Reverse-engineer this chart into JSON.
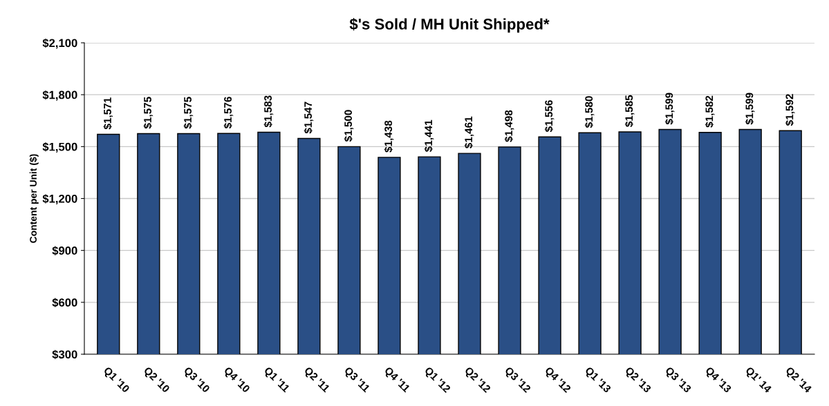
{
  "chart_data": {
    "type": "bar",
    "title": "$'s Sold / MH Unit Shipped*",
    "ylabel": "Content per Unit ($)",
    "categories": [
      "Q1 '10",
      "Q2 '10",
      "Q3 '10",
      "Q4 '10",
      "Q1 '11",
      "Q2 '11",
      "Q3 '11",
      "Q4 '11",
      "Q1 '12",
      "Q2 '12",
      "Q3 '12",
      "Q4 '12",
      "Q1 '13",
      "Q2 '13",
      "Q3 '13",
      "Q4 '13",
      "Q1' 14",
      "Q2 '14"
    ],
    "values": [
      1571,
      1575,
      1575,
      1576,
      1583,
      1547,
      1500,
      1438,
      1441,
      1461,
      1498,
      1556,
      1580,
      1585,
      1599,
      1582,
      1599,
      1592
    ],
    "value_labels": [
      "$1,571",
      "$1,575",
      "$1,575",
      "$1,576",
      "$1,583",
      "$1,547",
      "$1,500",
      "$1,438",
      "$1,441",
      "$1,461",
      "$1,498",
      "$1,556",
      "$1,580",
      "$1,585",
      "$1,599",
      "$1,582",
      "$1,599",
      "$1,592"
    ],
    "color": "#2a4f86",
    "ylim": [
      300,
      2100
    ],
    "yticks": [
      {
        "value": 300,
        "label": "$300"
      },
      {
        "value": 600,
        "label": "$600"
      },
      {
        "value": 900,
        "label": "$900"
      },
      {
        "value": 1200,
        "label": "$1,200"
      },
      {
        "value": 1500,
        "label": "$1,500"
      },
      {
        "value": 1800,
        "label": "$1,800"
      },
      {
        "value": 2100,
        "label": "$2,100"
      }
    ],
    "grid": "y"
  }
}
